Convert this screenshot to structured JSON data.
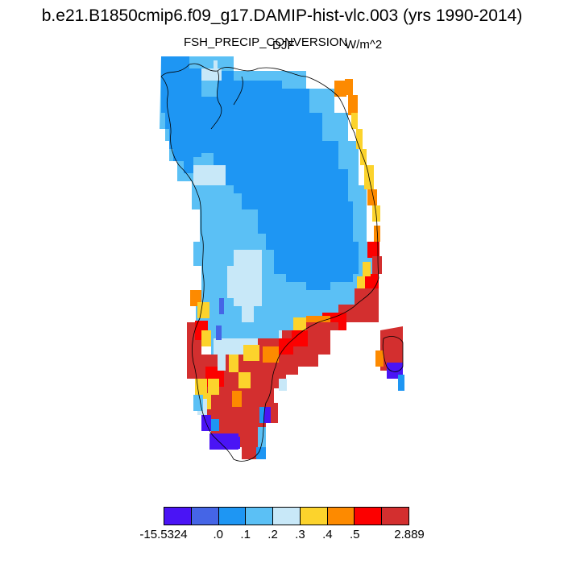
{
  "title": "b.e21.B1850cmip6.f09_g17.DAMIP-hist-vlc.003 (yrs 1990-2014)",
  "subtitle": "FSH_PRECIP_CONVERSION",
  "season": "DJF",
  "units": "W/m^2",
  "colorbar": {
    "colors": [
      "#4a14f5",
      "#4565e6",
      "#1e96f3",
      "#5bc0f5",
      "#c8e8f8",
      "#fcd32c",
      "#fd8a00",
      "#fc0000",
      "#d32f2f"
    ],
    "labels": [
      "-15.5324",
      ".0",
      ".1",
      ".2",
      ".3",
      ".4",
      ".5",
      "2.889"
    ]
  }
}
